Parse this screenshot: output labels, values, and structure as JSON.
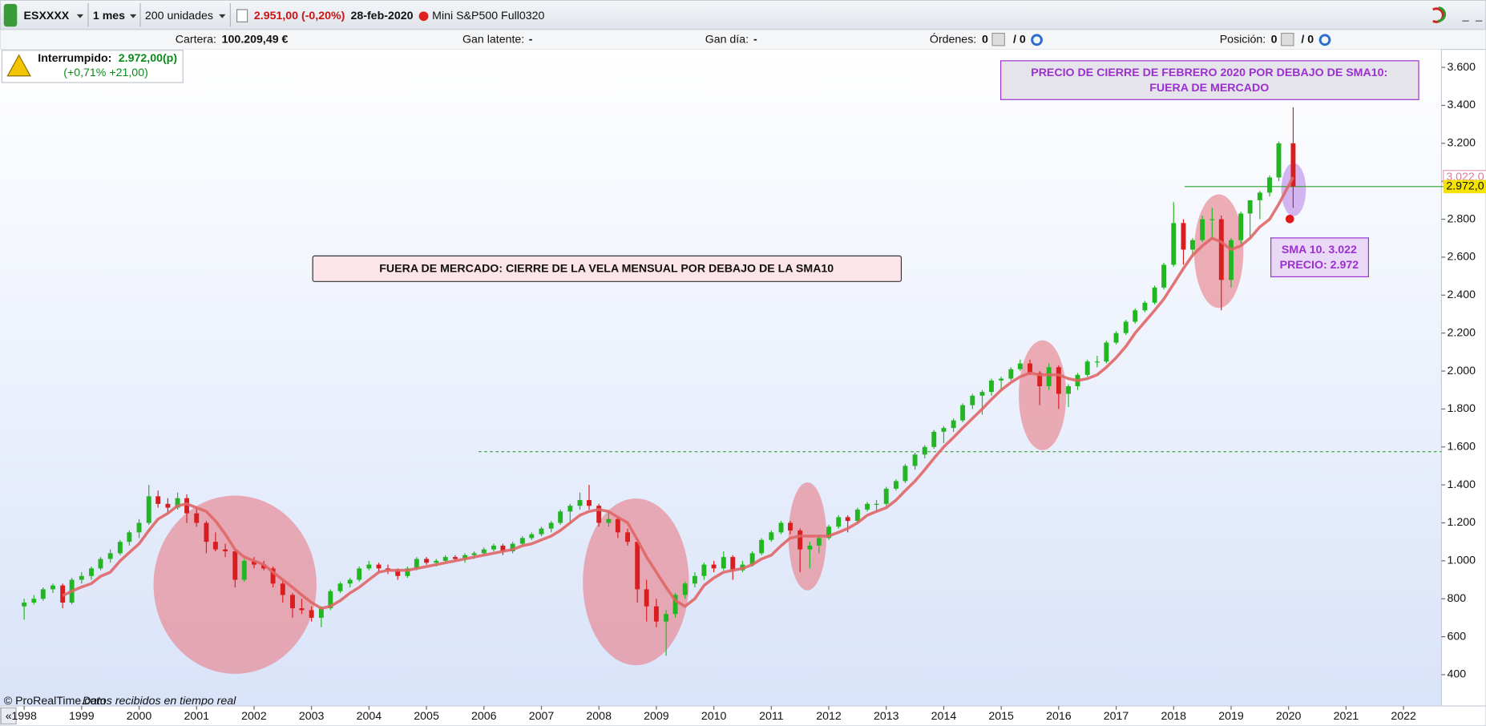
{
  "toolbar": {
    "symbol": "ESXXXX",
    "period": "1 mes",
    "units": "200 unidades",
    "price": "2.951,00 (-0,20%)",
    "date": "28-feb-2020",
    "instrument": "Mini S&P500 Full0320"
  },
  "info_bar": {
    "portfolio_label": "Cartera:",
    "portfolio_value": "100.209,49 €",
    "latent_label": "Gan latente:",
    "latent_value": "-",
    "day_label": "Gan día:",
    "day_value": "-",
    "orders_label": "Órdenes:",
    "orders_value": "0",
    "orders_total": "/ 0",
    "position_label": "Posición:",
    "position_value": "0",
    "position_total": "/ 0"
  },
  "alert": {
    "label": "Interrumpido:",
    "value": "2.972,00(p)",
    "change": "(+0,71% +21,00)"
  },
  "footer": {
    "source": "© ProRealTime.com",
    "note": "Datos recibidos en tiempo real"
  },
  "chart_data": {
    "type": "candlestick",
    "xlim": [
      1997.58,
      2022.66
    ],
    "xticks": [
      1998,
      1999,
      2000,
      2001,
      2002,
      2003,
      2004,
      2005,
      2006,
      2007,
      2008,
      2009,
      2010,
      2011,
      2012,
      2013,
      2014,
      2015,
      2016,
      2017,
      2018,
      2019,
      2020,
      2021,
      2022
    ],
    "ylim": [
      235,
      3680
    ],
    "yticks": [
      {
        "value": 400,
        "label": "400"
      },
      {
        "value": 600,
        "label": "600"
      },
      {
        "value": 800,
        "label": "800"
      },
      {
        "value": 1000,
        "label": "1.000"
      },
      {
        "value": 1200,
        "label": "1.200"
      },
      {
        "value": 1400,
        "label": "1.400"
      },
      {
        "value": 1600,
        "label": "1.600"
      },
      {
        "value": 1800,
        "label": "1.800"
      },
      {
        "value": 2000,
        "label": "2.000"
      },
      {
        "value": 2200,
        "label": "2.200"
      },
      {
        "value": 2400,
        "label": "2.400"
      },
      {
        "value": 2600,
        "label": "2.600"
      },
      {
        "value": 2800,
        "label": "2.800"
      },
      {
        "value": 3000,
        "label": "3.000"
      },
      {
        "value": 3200,
        "label": "3.200"
      },
      {
        "value": 3400,
        "label": "3.400"
      },
      {
        "value": 3600,
        "label": "3.600"
      }
    ],
    "grid": false,
    "up_color": "#23b623",
    "down_color": "#d81e1e",
    "sma_color": "#e06666",
    "x": [
      1998,
      1998.17,
      1998.33,
      1998.5,
      1998.67,
      1998.83,
      1999,
      1999.17,
      1999.33,
      1999.5,
      1999.67,
      1999.83,
      2000,
      2000.17,
      2000.33,
      2000.5,
      2000.67,
      2000.83,
      2001,
      2001.17,
      2001.33,
      2001.5,
      2001.67,
      2001.83,
      2002,
      2002.17,
      2002.33,
      2002.5,
      2002.67,
      2002.83,
      2003,
      2003.17,
      2003.33,
      2003.5,
      2003.67,
      2003.83,
      2004,
      2004.17,
      2004.33,
      2004.5,
      2004.67,
      2004.83,
      2005,
      2005.17,
      2005.33,
      2005.5,
      2005.67,
      2005.83,
      2006,
      2006.17,
      2006.33,
      2006.5,
      2006.67,
      2006.83,
      2007,
      2007.17,
      2007.33,
      2007.5,
      2007.67,
      2007.83,
      2008,
      2008.17,
      2008.33,
      2008.5,
      2008.67,
      2008.83,
      2009,
      2009.17,
      2009.33,
      2009.5,
      2009.67,
      2009.83,
      2010,
      2010.17,
      2010.33,
      2010.5,
      2010.67,
      2010.83,
      2011,
      2011.17,
      2011.33,
      2011.5,
      2011.67,
      2011.83,
      2012,
      2012.17,
      2012.33,
      2012.5,
      2012.67,
      2012.83,
      2013,
      2013.17,
      2013.33,
      2013.5,
      2013.67,
      2013.83,
      2014,
      2014.17,
      2014.33,
      2014.5,
      2014.67,
      2014.83,
      2015,
      2015.17,
      2015.33,
      2015.5,
      2015.67,
      2015.83,
      2016,
      2016.17,
      2016.33,
      2016.5,
      2016.67,
      2016.83,
      2017,
      2017.17,
      2017.33,
      2017.5,
      2017.67,
      2017.83,
      2018,
      2018.17,
      2018.33,
      2018.5,
      2018.67,
      2018.83,
      2019,
      2019.17,
      2019.33,
      2019.5,
      2019.67,
      2019.83,
      2020.08
    ],
    "candles": [
      [
        760,
        800,
        690,
        780
      ],
      [
        780,
        820,
        770,
        800
      ],
      [
        800,
        860,
        790,
        850
      ],
      [
        850,
        880,
        830,
        870
      ],
      [
        870,
        880,
        750,
        780
      ],
      [
        780,
        910,
        770,
        900
      ],
      [
        900,
        940,
        880,
        920
      ],
      [
        920,
        970,
        900,
        960
      ],
      [
        960,
        1020,
        950,
        1010
      ],
      [
        1010,
        1060,
        990,
        1040
      ],
      [
        1040,
        1110,
        1030,
        1100
      ],
      [
        1100,
        1160,
        1080,
        1150
      ],
      [
        1150,
        1220,
        1120,
        1200
      ],
      [
        1200,
        1400,
        1190,
        1340
      ],
      [
        1340,
        1370,
        1280,
        1300
      ],
      [
        1300,
        1330,
        1250,
        1280
      ],
      [
        1280,
        1360,
        1270,
        1330
      ],
      [
        1330,
        1350,
        1200,
        1250
      ],
      [
        1250,
        1280,
        1180,
        1200
      ],
      [
        1200,
        1210,
        1040,
        1100
      ],
      [
        1100,
        1150,
        1050,
        1060
      ],
      [
        1060,
        1090,
        1020,
        1050
      ],
      [
        1050,
        1060,
        860,
        900
      ],
      [
        900,
        1010,
        890,
        1000
      ],
      [
        1000,
        1020,
        960,
        980
      ],
      [
        980,
        1000,
        950,
        960
      ],
      [
        960,
        970,
        860,
        880
      ],
      [
        880,
        900,
        780,
        820
      ],
      [
        820,
        830,
        700,
        750
      ],
      [
        750,
        800,
        720,
        740
      ],
      [
        740,
        760,
        680,
        700
      ],
      [
        700,
        760,
        650,
        750
      ],
      [
        750,
        850,
        740,
        840
      ],
      [
        840,
        890,
        830,
        880
      ],
      [
        880,
        910,
        860,
        900
      ],
      [
        900,
        970,
        890,
        960
      ],
      [
        960,
        1000,
        950,
        980
      ],
      [
        980,
        990,
        940,
        960
      ],
      [
        960,
        980,
        930,
        950
      ],
      [
        950,
        960,
        900,
        920
      ],
      [
        920,
        970,
        910,
        960
      ],
      [
        960,
        1020,
        950,
        1010
      ],
      [
        1010,
        1020,
        980,
        990
      ],
      [
        990,
        1010,
        970,
        1000
      ],
      [
        1000,
        1030,
        990,
        1020
      ],
      [
        1020,
        1030,
        1000,
        1010
      ],
      [
        1010,
        1040,
        990,
        1030
      ],
      [
        1030,
        1050,
        1010,
        1040
      ],
      [
        1040,
        1070,
        1030,
        1060
      ],
      [
        1060,
        1090,
        1050,
        1080
      ],
      [
        1080,
        1090,
        1030,
        1050
      ],
      [
        1050,
        1100,
        1040,
        1090
      ],
      [
        1090,
        1130,
        1080,
        1120
      ],
      [
        1120,
        1150,
        1110,
        1140
      ],
      [
        1140,
        1180,
        1130,
        1170
      ],
      [
        1170,
        1210,
        1150,
        1200
      ],
      [
        1200,
        1270,
        1190,
        1260
      ],
      [
        1260,
        1300,
        1200,
        1290
      ],
      [
        1290,
        1360,
        1270,
        1320
      ],
      [
        1320,
        1400,
        1270,
        1290
      ],
      [
        1290,
        1300,
        1180,
        1200
      ],
      [
        1200,
        1260,
        1180,
        1220
      ],
      [
        1220,
        1230,
        1120,
        1150
      ],
      [
        1150,
        1170,
        1080,
        1100
      ],
      [
        1100,
        1120,
        780,
        850
      ],
      [
        850,
        900,
        680,
        760
      ],
      [
        760,
        800,
        650,
        680
      ],
      [
        680,
        740,
        500,
        720
      ],
      [
        720,
        830,
        700,
        820
      ],
      [
        820,
        890,
        800,
        880
      ],
      [
        880,
        940,
        860,
        920
      ],
      [
        920,
        990,
        900,
        980
      ],
      [
        980,
        1000,
        940,
        960
      ],
      [
        960,
        1050,
        950,
        1020
      ],
      [
        1020,
        1030,
        900,
        950
      ],
      [
        950,
        1000,
        940,
        980
      ],
      [
        980,
        1050,
        970,
        1040
      ],
      [
        1040,
        1120,
        1030,
        1110
      ],
      [
        1110,
        1160,
        1100,
        1150
      ],
      [
        1150,
        1210,
        1140,
        1200
      ],
      [
        1200,
        1210,
        1140,
        1160
      ],
      [
        1160,
        1170,
        940,
        1060
      ],
      [
        1060,
        1100,
        960,
        1080
      ],
      [
        1080,
        1130,
        1040,
        1120
      ],
      [
        1120,
        1190,
        1110,
        1180
      ],
      [
        1180,
        1240,
        1170,
        1230
      ],
      [
        1230,
        1240,
        1150,
        1210
      ],
      [
        1210,
        1280,
        1200,
        1270
      ],
      [
        1270,
        1310,
        1260,
        1300
      ],
      [
        1300,
        1320,
        1260,
        1300
      ],
      [
        1300,
        1390,
        1290,
        1380
      ],
      [
        1380,
        1430,
        1370,
        1420
      ],
      [
        1420,
        1510,
        1410,
        1500
      ],
      [
        1500,
        1570,
        1480,
        1560
      ],
      [
        1560,
        1610,
        1540,
        1600
      ],
      [
        1600,
        1690,
        1590,
        1680
      ],
      [
        1680,
        1710,
        1620,
        1700
      ],
      [
        1700,
        1750,
        1680,
        1740
      ],
      [
        1740,
        1830,
        1730,
        1820
      ],
      [
        1820,
        1880,
        1800,
        1870
      ],
      [
        1870,
        1900,
        1770,
        1890
      ],
      [
        1890,
        1960,
        1870,
        1950
      ],
      [
        1950,
        1970,
        1900,
        1960
      ],
      [
        1960,
        2020,
        1950,
        2010
      ],
      [
        2010,
        2060,
        2000,
        2040
      ],
      [
        2040,
        2060,
        1980,
        1990
      ],
      [
        1990,
        2000,
        1820,
        1920
      ],
      [
        1920,
        2040,
        1900,
        2020
      ],
      [
        2020,
        2030,
        1800,
        1880
      ],
      [
        1880,
        1930,
        1810,
        1920
      ],
      [
        1920,
        1990,
        1900,
        1980
      ],
      [
        1980,
        2060,
        1970,
        2050
      ],
      [
        2050,
        2080,
        2020,
        2050
      ],
      [
        2050,
        2160,
        2040,
        2150
      ],
      [
        2150,
        2210,
        2140,
        2200
      ],
      [
        2200,
        2270,
        2190,
        2260
      ],
      [
        2260,
        2330,
        2250,
        2320
      ],
      [
        2320,
        2370,
        2310,
        2360
      ],
      [
        2360,
        2450,
        2350,
        2440
      ],
      [
        2440,
        2570,
        2430,
        2560
      ],
      [
        2560,
        2890,
        2550,
        2780
      ],
      [
        2780,
        2800,
        2560,
        2640
      ],
      [
        2640,
        2700,
        2600,
        2690
      ],
      [
        2690,
        2820,
        2680,
        2800
      ],
      [
        2800,
        2860,
        2700,
        2800
      ],
      [
        2800,
        2820,
        2320,
        2480
      ],
      [
        2480,
        2700,
        2440,
        2690
      ],
      [
        2690,
        2840,
        2670,
        2830
      ],
      [
        2830,
        2900,
        2700,
        2900
      ],
      [
        2900,
        2950,
        2800,
        2940
      ],
      [
        2940,
        3030,
        2920,
        3020
      ],
      [
        3020,
        3210,
        3000,
        3200
      ],
      [
        3200,
        3390,
        2860,
        2972
      ]
    ],
    "sma": [
      null,
      null,
      null,
      null,
      816,
      840,
      862,
      880,
      918,
      940,
      1000,
      1044,
      1090,
      1160,
      1220,
      1250,
      1290,
      1300,
      1280,
      1260,
      1210,
      1140,
      1060,
      1020,
      1000,
      980,
      940,
      900,
      860,
      820,
      780,
      750,
      760,
      790,
      830,
      860,
      900,
      940,
      950,
      950,
      950,
      960,
      970,
      980,
      990,
      1000,
      1010,
      1020,
      1030,
      1040,
      1050,
      1060,
      1080,
      1090,
      1110,
      1130,
      1160,
      1200,
      1240,
      1260,
      1270,
      1260,
      1230,
      1200,
      1110,
      1020,
      940,
      860,
      790,
      760,
      800,
      870,
      910,
      940,
      950,
      960,
      980,
      1010,
      1030,
      1080,
      1120,
      1130,
      1130,
      1130,
      1130,
      1150,
      1170,
      1200,
      1240,
      1260,
      1280,
      1320,
      1370,
      1420,
      1480,
      1540,
      1600,
      1650,
      1700,
      1750,
      1800,
      1850,
      1900,
      1940,
      1970,
      1990,
      1980,
      1980,
      1980,
      1960,
      1950,
      1960,
      1980,
      2020,
      2070,
      2130,
      2200,
      2260,
      2320,
      2380,
      2460,
      2540,
      2610,
      2660,
      2700,
      2680,
      2640,
      2660,
      2700,
      2760,
      2800,
      2880,
      3022
    ],
    "support_level": 1575,
    "price_line": {
      "value": 2972,
      "label": "2.972,0"
    },
    "sma_last": {
      "value": 3022,
      "label": "3.022,0"
    },
    "annotations": [
      [
        "PRECIO DE CIERRE DE FEBRERO 2020 POR DEBAJO DE SMA10:",
        "FUERA DE MERCADO"
      ],
      [
        "FUERA DE MERCADO: CIERRE DE LA VELA MENSUAL POR DEBAJO DE LA SMA10"
      ],
      [
        "SMA 10. 3.022",
        "PRECIO: 2.972"
      ]
    ]
  }
}
